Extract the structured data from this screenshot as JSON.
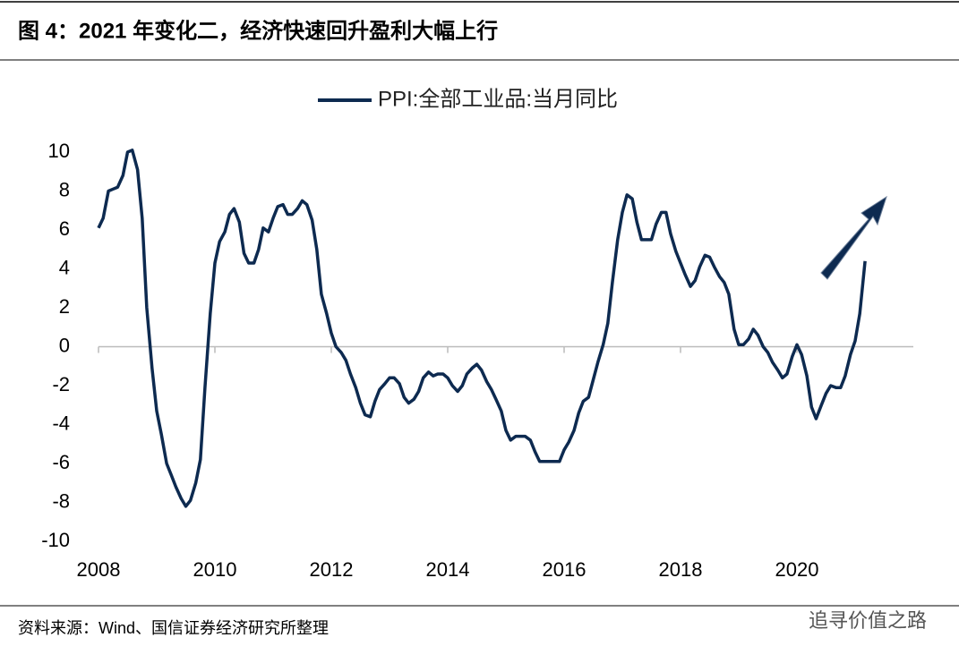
{
  "chart_data": {
    "type": "line",
    "title": "图 4：2021 年变化二，经济快速回升盈利大幅上行",
    "source": "资料来源：Wind、国信证券经济研究所整理",
    "watermark": "追寻价值之路",
    "x": [
      2008.0,
      2008.08,
      2008.17,
      2008.25,
      2008.33,
      2008.42,
      2008.5,
      2008.58,
      2008.67,
      2008.75,
      2008.83,
      2008.92,
      2009.0,
      2009.08,
      2009.17,
      2009.25,
      2009.33,
      2009.42,
      2009.5,
      2009.58,
      2009.67,
      2009.75,
      2009.83,
      2009.92,
      2010.0,
      2010.08,
      2010.17,
      2010.25,
      2010.33,
      2010.42,
      2010.5,
      2010.58,
      2010.67,
      2010.75,
      2010.83,
      2010.92,
      2011.0,
      2011.08,
      2011.17,
      2011.25,
      2011.33,
      2011.42,
      2011.5,
      2011.58,
      2011.67,
      2011.75,
      2011.83,
      2011.92,
      2012.0,
      2012.08,
      2012.17,
      2012.25,
      2012.33,
      2012.42,
      2012.5,
      2012.58,
      2012.67,
      2012.75,
      2012.83,
      2012.92,
      2013.0,
      2013.08,
      2013.17,
      2013.25,
      2013.33,
      2013.42,
      2013.5,
      2013.58,
      2013.67,
      2013.75,
      2013.83,
      2013.92,
      2014.0,
      2014.08,
      2014.17,
      2014.25,
      2014.33,
      2014.42,
      2014.5,
      2014.58,
      2014.67,
      2014.75,
      2014.83,
      2014.92,
      2015.0,
      2015.08,
      2015.17,
      2015.25,
      2015.33,
      2015.42,
      2015.5,
      2015.58,
      2015.67,
      2015.75,
      2015.83,
      2015.92,
      2016.0,
      2016.08,
      2016.17,
      2016.25,
      2016.33,
      2016.42,
      2016.5,
      2016.58,
      2016.67,
      2016.75,
      2016.83,
      2016.92,
      2017.0,
      2017.08,
      2017.17,
      2017.25,
      2017.33,
      2017.42,
      2017.5,
      2017.58,
      2017.67,
      2017.75,
      2017.83,
      2017.92,
      2018.0,
      2018.08,
      2018.17,
      2018.25,
      2018.33,
      2018.42,
      2018.5,
      2018.58,
      2018.67,
      2018.75,
      2018.83,
      2018.92,
      2019.0,
      2019.08,
      2019.17,
      2019.25,
      2019.33,
      2019.42,
      2019.5,
      2019.58,
      2019.67,
      2019.75,
      2019.83,
      2019.92,
      2020.0,
      2020.08,
      2020.17,
      2020.25,
      2020.33,
      2020.42,
      2020.5,
      2020.58,
      2020.67,
      2020.75,
      2020.83,
      2020.92,
      2021.0,
      2021.08,
      2021.17
    ],
    "series": [
      {
        "name": "PPI:全部工业品:当月同比",
        "color": "#0d2a50",
        "values": [
          6.1,
          6.6,
          8.0,
          8.1,
          8.2,
          8.8,
          10.0,
          10.1,
          9.1,
          6.6,
          2.0,
          -1.1,
          -3.3,
          -4.5,
          -6.0,
          -6.6,
          -7.2,
          -7.8,
          -8.2,
          -7.9,
          -7.0,
          -5.8,
          -2.1,
          1.7,
          4.3,
          5.4,
          5.9,
          6.8,
          7.1,
          6.4,
          4.8,
          4.3,
          4.3,
          5.0,
          6.1,
          5.9,
          6.6,
          7.2,
          7.3,
          6.8,
          6.8,
          7.1,
          7.5,
          7.3,
          6.5,
          5.0,
          2.7,
          1.7,
          0.7,
          0.0,
          -0.3,
          -0.7,
          -1.4,
          -2.1,
          -2.9,
          -3.5,
          -3.6,
          -2.8,
          -2.2,
          -1.9,
          -1.6,
          -1.6,
          -1.9,
          -2.6,
          -2.9,
          -2.7,
          -2.3,
          -1.6,
          -1.3,
          -1.5,
          -1.4,
          -1.4,
          -1.6,
          -2.0,
          -2.3,
          -2.0,
          -1.4,
          -1.1,
          -0.9,
          -1.2,
          -1.8,
          -2.2,
          -2.7,
          -3.3,
          -4.3,
          -4.8,
          -4.6,
          -4.6,
          -4.6,
          -4.8,
          -5.4,
          -5.9,
          -5.9,
          -5.9,
          -5.9,
          -5.9,
          -5.3,
          -4.9,
          -4.3,
          -3.4,
          -2.8,
          -2.6,
          -1.7,
          -0.8,
          0.1,
          1.2,
          3.3,
          5.5,
          6.9,
          7.8,
          7.6,
          6.4,
          5.5,
          5.5,
          5.5,
          6.3,
          6.9,
          6.9,
          5.8,
          4.9,
          4.3,
          3.7,
          3.1,
          3.4,
          4.1,
          4.7,
          4.6,
          4.1,
          3.6,
          3.3,
          2.7,
          0.9,
          0.1,
          0.1,
          0.4,
          0.9,
          0.6,
          0.0,
          -0.3,
          -0.8,
          -1.2,
          -1.6,
          -1.4,
          -0.5,
          0.1,
          -0.4,
          -1.5,
          -3.1,
          -3.7,
          -3.0,
          -2.4,
          -2.0,
          -2.1,
          -2.1,
          -1.5,
          -0.4,
          0.3,
          1.7,
          4.4
        ]
      }
    ],
    "xlim": [
      2008,
      2022
    ],
    "xticks": [
      2008,
      2010,
      2012,
      2014,
      2016,
      2018,
      2020
    ],
    "ylim": [
      -10,
      10
    ],
    "yticks": [
      10,
      8,
      6,
      4,
      2,
      0,
      -2,
      -4,
      -6,
      -8,
      -10
    ],
    "grid": false,
    "legend": "top"
  }
}
